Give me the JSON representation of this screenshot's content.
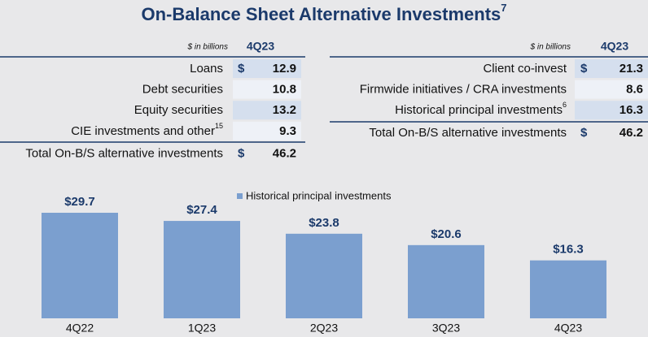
{
  "header": {
    "title": "On-Balance Sheet Alternative Investments",
    "title_sup": "7"
  },
  "left_table": {
    "unit_note": "$ in billions",
    "column": "4Q23",
    "rows": [
      {
        "label": "Loans",
        "currency": "$",
        "value": 12.9
      },
      {
        "label": "Debt securities",
        "value": 10.8
      },
      {
        "label": "Equity securities",
        "value": 13.2
      },
      {
        "label": "CIE investments and other",
        "sup": "15",
        "value": 9.3
      },
      {
        "label": "Total On-B/S alternative investments",
        "currency": "$",
        "value": 46.2
      }
    ]
  },
  "right_table": {
    "unit_note": "$ in billions",
    "column": "4Q23",
    "rows": [
      {
        "label": "Client co-invest",
        "currency": "$",
        "value": 21.3
      },
      {
        "label": "Firmwide initiatives / CRA investments",
        "value": 8.6
      },
      {
        "label": "Historical principal investments",
        "sup": "6",
        "value": 16.3
      },
      {
        "label": "Total On-B/S alternative investments",
        "currency": "$",
        "value": 46.2
      }
    ]
  },
  "chart_data": {
    "type": "bar",
    "categories": [
      "4Q22",
      "1Q23",
      "2Q23",
      "3Q23",
      "4Q23"
    ],
    "series": [
      {
        "name": "Historical principal investments",
        "color": "#7b9fcf",
        "values": [
          29.7,
          27.4,
          23.8,
          20.6,
          16.3
        ],
        "value_labels": [
          "$29.7",
          "$27.4",
          "$23.8",
          "$20.6",
          "$16.3"
        ]
      }
    ]
  }
}
